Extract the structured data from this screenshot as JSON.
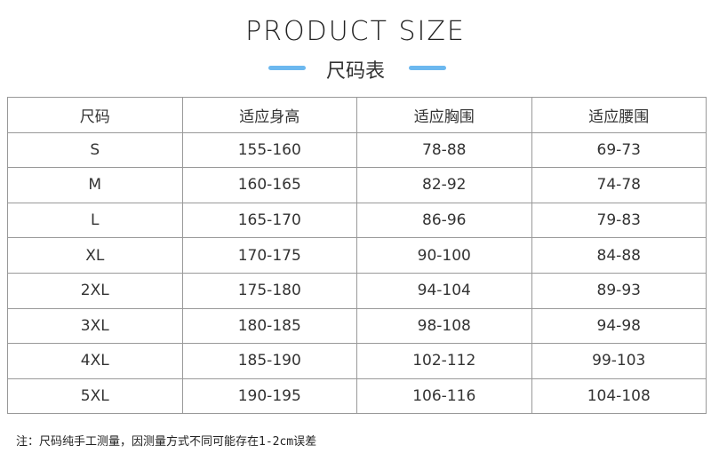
{
  "title": "PRODUCT SIZE",
  "subtitle": "尺码表",
  "accent_color": "#6cb8ef",
  "table": {
    "headers": [
      "尺码",
      "适应身高",
      "适应胸围",
      "适应腰围"
    ],
    "rows": [
      [
        "S",
        "155-160",
        "78-88",
        "69-73"
      ],
      [
        "M",
        "160-165",
        "82-92",
        "74-78"
      ],
      [
        "L",
        "165-170",
        "86-96",
        "79-83"
      ],
      [
        "XL",
        "170-175",
        "90-100",
        "84-88"
      ],
      [
        "2XL",
        "175-180",
        "94-104",
        "89-93"
      ],
      [
        "3XL",
        "180-185",
        "98-108",
        "94-98"
      ],
      [
        "4XL",
        "185-190",
        "102-112",
        "99-103"
      ],
      [
        "5XL",
        "190-195",
        "106-116",
        "104-108"
      ]
    ]
  },
  "note": "注：尺码纯手工测量，因测量方式不同可能存在1-2cm误差"
}
